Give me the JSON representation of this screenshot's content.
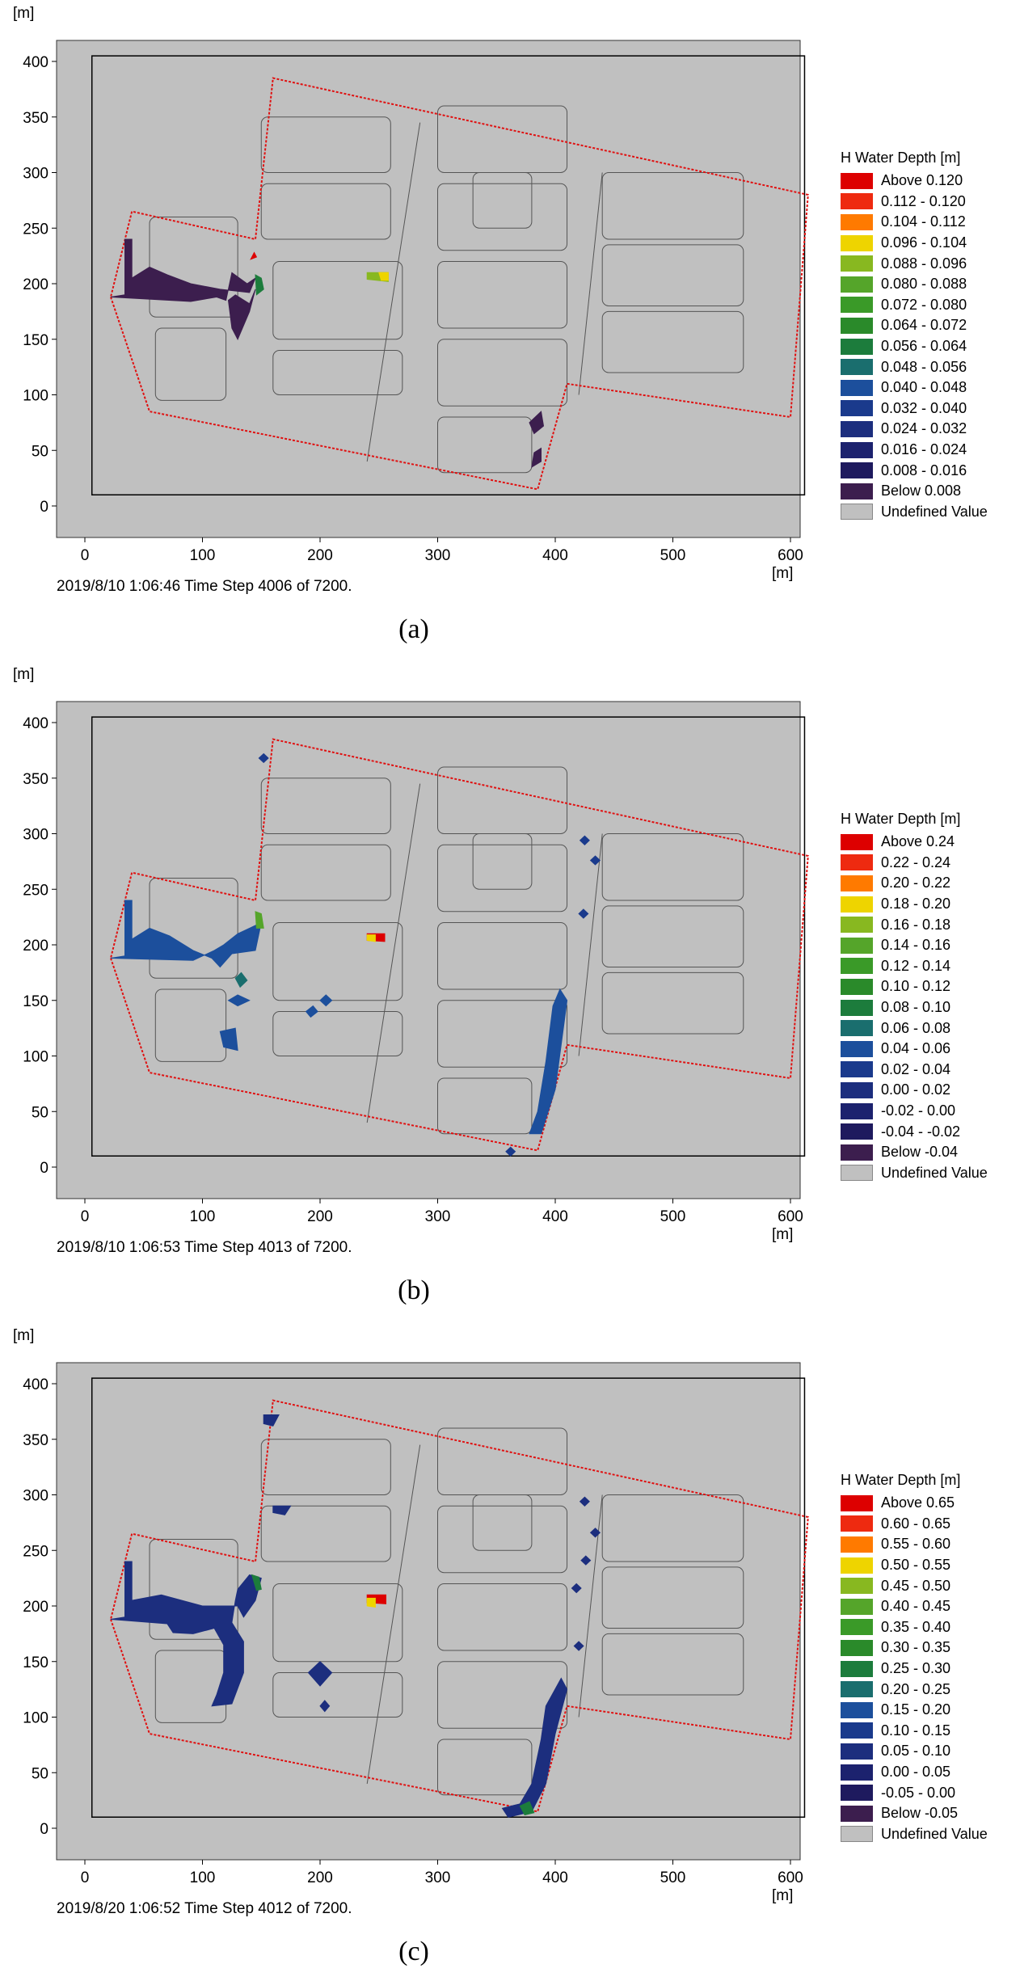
{
  "axis": {
    "y_unit": "[m]",
    "x_unit": "[m]",
    "x_ticks": [
      0,
      100,
      200,
      300,
      400,
      500,
      600
    ],
    "y_ticks": [
      0,
      50,
      100,
      150,
      200,
      250,
      300,
      350,
      400
    ]
  },
  "legend_title": "H Water Depth [m]",
  "undefined_label": "Undefined Value",
  "colors": {
    "background": "#c0c0c0",
    "site_outline": "#e01010",
    "building_outline": "#555555",
    "palette": [
      "#dd0000",
      "#ee2a10",
      "#ff7a00",
      "#eed400",
      "#88b820",
      "#55a52a",
      "#3a9a28",
      "#2a8a2a",
      "#1c7c3c",
      "#1a6e6e",
      "#1c4f9c",
      "#1a3a8c",
      "#1c2e7e",
      "#1c226e",
      "#1e1a5e",
      "#3c1e4e"
    ],
    "undefined": "#c0c0c0"
  },
  "panels": [
    {
      "id": "a",
      "legend_labels": [
        "Above  0.120",
        "0.112 - 0.120",
        "0.104 - 0.112",
        "0.096 - 0.104",
        "0.088 - 0.096",
        "0.080 - 0.088",
        "0.072 - 0.080",
        "0.064 - 0.072",
        "0.056 - 0.064",
        "0.048 - 0.056",
        "0.040 - 0.048",
        "0.032 - 0.040",
        "0.024 - 0.032",
        "0.016 - 0.024",
        "0.008 - 0.016",
        "Below  0.008"
      ],
      "timestamp": "2019/8/10 1:06:46  Time Step 4006 of 7200.",
      "caption": "(a)",
      "patches": [
        {
          "pts": [
            [
              22,
              188
            ],
            [
              34,
              190
            ],
            [
              34,
              240
            ],
            [
              40,
              240
            ],
            [
              40,
              205
            ],
            [
              55,
              215
            ],
            [
              70,
              208
            ],
            [
              90,
              200
            ],
            [
              115,
              195
            ],
            [
              140,
              192
            ],
            [
              145,
              205
            ],
            [
              138,
              200
            ],
            [
              125,
              210
            ],
            [
              120,
              185
            ],
            [
              112,
              188
            ],
            [
              90,
              184
            ]
          ],
          "color": 15
        },
        {
          "pts": [
            [
              128,
              190
            ],
            [
              140,
              182
            ],
            [
              145,
              195
            ],
            [
              140,
              175
            ],
            [
              130,
              150
            ],
            [
              125,
              160
            ],
            [
              122,
              185
            ]
          ],
          "color": 15
        },
        {
          "pts": [
            [
              378,
              75
            ],
            [
              388,
              85
            ],
            [
              390,
              72
            ],
            [
              382,
              65
            ]
          ],
          "color": 15
        },
        {
          "pts": [
            [
              380,
              35
            ],
            [
              388,
              40
            ],
            [
              388,
              52
            ],
            [
              382,
              48
            ]
          ],
          "color": 15
        },
        {
          "pts": [
            [
              145,
              208
            ],
            [
              150,
              205
            ],
            [
              152,
              195
            ],
            [
              146,
              190
            ]
          ],
          "color": 8
        },
        {
          "pts": [
            [
              141,
              222
            ],
            [
              146,
              224
            ],
            [
              144,
              228
            ]
          ],
          "color": 0
        },
        {
          "pts": [
            [
              240,
              210
            ],
            [
              258,
              210
            ],
            [
              258,
              202
            ],
            [
              240,
              204
            ]
          ],
          "color": 4
        },
        {
          "pts": [
            [
              250,
              210
            ],
            [
              258,
              210
            ],
            [
              258,
              203
            ],
            [
              252,
              203
            ]
          ],
          "color": 3
        }
      ]
    },
    {
      "id": "b",
      "legend_labels": [
        "Above  0.24",
        "0.22 - 0.24",
        "0.20 - 0.22",
        "0.18 - 0.20",
        "0.16 - 0.18",
        "0.14 - 0.16",
        "0.12 - 0.14",
        "0.10 - 0.12",
        "0.08 - 0.10",
        "0.06 - 0.08",
        "0.04 - 0.06",
        "0.02 - 0.04",
        "0.00 - 0.02",
        "-0.02 - 0.00",
        "-0.04 - -0.02",
        "Below  -0.04"
      ],
      "timestamp": "2019/8/10 1:06:53  Time Step 4013 of 7200.",
      "caption": "(b)",
      "patches": [
        {
          "pts": [
            [
              22,
              188
            ],
            [
              34,
              190
            ],
            [
              34,
              240
            ],
            [
              40,
              240
            ],
            [
              40,
              205
            ],
            [
              55,
              215
            ],
            [
              72,
              208
            ],
            [
              92,
              195
            ],
            [
              108,
              188
            ],
            [
              115,
              180
            ],
            [
              125,
              192
            ],
            [
              145,
              195
            ],
            [
              150,
              220
            ],
            [
              140,
              215
            ],
            [
              130,
              210
            ],
            [
              118,
              200
            ],
            [
              110,
              195
            ],
            [
              92,
              186
            ]
          ],
          "color": 10
        },
        {
          "pts": [
            [
              128,
              170
            ],
            [
              133,
              175
            ],
            [
              138,
              168
            ],
            [
              132,
              162
            ]
          ],
          "color": 9
        },
        {
          "pts": [
            [
              122,
              150
            ],
            [
              130,
              155
            ],
            [
              140,
              150
            ],
            [
              130,
              145
            ]
          ],
          "color": 10
        },
        {
          "pts": [
            [
              115,
              122
            ],
            [
              128,
              125
            ],
            [
              130,
              105
            ],
            [
              118,
              108
            ]
          ],
          "color": 10
        },
        {
          "pts": [
            [
              188,
              140
            ],
            [
              194,
              145
            ],
            [
              198,
              140
            ],
            [
              192,
              135
            ]
          ],
          "color": 10
        },
        {
          "pts": [
            [
              200,
              150
            ],
            [
              205,
              155
            ],
            [
              210,
              150
            ],
            [
              205,
              145
            ]
          ],
          "color": 10
        },
        {
          "pts": [
            [
              378,
              30
            ],
            [
              385,
              50
            ],
            [
              392,
              95
            ],
            [
              398,
              145
            ],
            [
              404,
              160
            ],
            [
              410,
              150
            ],
            [
              405,
              110
            ],
            [
              400,
              70
            ],
            [
              388,
              30
            ]
          ],
          "color": 10
        },
        {
          "pts": [
            [
              145,
              230
            ],
            [
              150,
              228
            ],
            [
              152,
              215
            ],
            [
              146,
              215
            ]
          ],
          "color": 5
        },
        {
          "pts": [
            [
              240,
              210
            ],
            [
              255,
              210
            ],
            [
              255,
              203
            ],
            [
              240,
              204
            ]
          ],
          "color": 0
        },
        {
          "pts": [
            [
              240,
              209
            ],
            [
              247,
              209
            ],
            [
              247,
              203
            ],
            [
              240,
              204
            ]
          ],
          "color": 3
        },
        {
          "pts": [
            [
              152,
              372
            ],
            [
              156,
              368
            ],
            [
              152,
              364
            ],
            [
              148,
              368
            ]
          ],
          "color": 11
        },
        {
          "pts": [
            [
              425,
              298
            ],
            [
              429,
              294
            ],
            [
              425,
              290
            ],
            [
              421,
              294
            ]
          ],
          "color": 11
        },
        {
          "pts": [
            [
              434,
              280
            ],
            [
              438,
              276
            ],
            [
              434,
              272
            ],
            [
              430,
              276
            ]
          ],
          "color": 11
        },
        {
          "pts": [
            [
              424,
              232
            ],
            [
              428,
              228
            ],
            [
              424,
              224
            ],
            [
              420,
              228
            ]
          ],
          "color": 11
        },
        {
          "pts": [
            [
              362,
              18
            ],
            [
              366,
              14
            ],
            [
              362,
              10
            ],
            [
              358,
              14
            ]
          ],
          "color": 11
        }
      ]
    },
    {
      "id": "c",
      "legend_labels": [
        "Above  0.65",
        "0.60 - 0.65",
        "0.55 - 0.60",
        "0.50 - 0.55",
        "0.45 - 0.50",
        "0.40 - 0.45",
        "0.35 - 0.40",
        "0.30 - 0.35",
        "0.25 - 0.30",
        "0.20 - 0.25",
        "0.15 - 0.20",
        "0.10 - 0.15",
        "0.05 - 0.10",
        "0.00 - 0.05",
        "-0.05 - 0.00",
        "Below  -0.05"
      ],
      "timestamp": "2019/8/20 1:06:52  Time Step 4012 of 7200.",
      "caption": "(c)",
      "patches": [
        {
          "pts": [
            [
              22,
              188
            ],
            [
              34,
              190
            ],
            [
              34,
              240
            ],
            [
              40,
              240
            ],
            [
              40,
              205
            ],
            [
              65,
              210
            ],
            [
              100,
              200
            ],
            [
              130,
              200
            ],
            [
              135,
              190
            ],
            [
              145,
              205
            ],
            [
              150,
              225
            ],
            [
              140,
              228
            ],
            [
              130,
              215
            ],
            [
              128,
              205
            ],
            [
              125,
              185
            ],
            [
              135,
              168
            ],
            [
              135,
              140
            ],
            [
              125,
              112
            ],
            [
              108,
              110
            ],
            [
              112,
              120
            ],
            [
              118,
              140
            ],
            [
              118,
              165
            ],
            [
              110,
              180
            ],
            [
              92,
              175
            ],
            [
              75,
              176
            ],
            [
              70,
              184
            ]
          ],
          "color": 12
        },
        {
          "pts": [
            [
              190,
              140
            ],
            [
              200,
              150
            ],
            [
              210,
              140
            ],
            [
              200,
              128
            ]
          ],
          "color": 12
        },
        {
          "pts": [
            [
              200,
              110
            ],
            [
              204,
              115
            ],
            [
              208,
              110
            ],
            [
              204,
              105
            ]
          ],
          "color": 12
        },
        {
          "pts": [
            [
              152,
              372
            ],
            [
              165,
              372
            ],
            [
              160,
              362
            ],
            [
              152,
              364
            ]
          ],
          "color": 12
        },
        {
          "pts": [
            [
              160,
              290
            ],
            [
              175,
              290
            ],
            [
              170,
              282
            ],
            [
              160,
              284
            ]
          ],
          "color": 12
        },
        {
          "pts": [
            [
              355,
              18
            ],
            [
              370,
              22
            ],
            [
              380,
              40
            ],
            [
              388,
              80
            ],
            [
              392,
              110
            ],
            [
              405,
              135
            ],
            [
              410,
              125
            ],
            [
              400,
              85
            ],
            [
              392,
              40
            ],
            [
              380,
              15
            ],
            [
              360,
              10
            ]
          ],
          "color": 12
        },
        {
          "pts": [
            [
              370,
              20
            ],
            [
              378,
              24
            ],
            [
              382,
              14
            ],
            [
              374,
              12
            ]
          ],
          "color": 8
        },
        {
          "pts": [
            [
              142,
              228
            ],
            [
              148,
              226
            ],
            [
              150,
              215
            ],
            [
              146,
              214
            ]
          ],
          "color": 8
        },
        {
          "pts": [
            [
              240,
              210
            ],
            [
              256,
              210
            ],
            [
              256,
              202
            ],
            [
              240,
              203
            ]
          ],
          "color": 0
        },
        {
          "pts": [
            [
              240,
              207
            ],
            [
              247,
              207
            ],
            [
              247,
              199
            ],
            [
              240,
              200
            ]
          ],
          "color": 3
        },
        {
          "pts": [
            [
              425,
              298
            ],
            [
              429,
              294
            ],
            [
              425,
              290
            ],
            [
              421,
              294
            ]
          ],
          "color": 12
        },
        {
          "pts": [
            [
              434,
              270
            ],
            [
              438,
              266
            ],
            [
              434,
              262
            ],
            [
              430,
              266
            ]
          ],
          "color": 12
        },
        {
          "pts": [
            [
              426,
              245
            ],
            [
              430,
              241
            ],
            [
              426,
              237
            ],
            [
              422,
              241
            ]
          ],
          "color": 12
        },
        {
          "pts": [
            [
              418,
              220
            ],
            [
              422,
              216
            ],
            [
              418,
              212
            ],
            [
              414,
              216
            ]
          ],
          "color": 12
        },
        {
          "pts": [
            [
              420,
              168
            ],
            [
              424,
              164
            ],
            [
              420,
              160
            ],
            [
              416,
              164
            ]
          ],
          "color": 12
        }
      ]
    }
  ]
}
